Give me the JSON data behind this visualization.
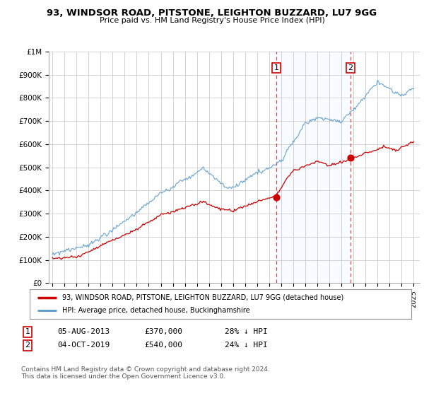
{
  "title": "93, WINDSOR ROAD, PITSTONE, LEIGHTON BUZZARD, LU7 9GG",
  "subtitle": "Price paid vs. HM Land Registry's House Price Index (HPI)",
  "ylabel_ticks": [
    "£0",
    "£100K",
    "£200K",
    "£300K",
    "£400K",
    "£500K",
    "£600K",
    "£700K",
    "£800K",
    "£900K",
    "£1M"
  ],
  "ytick_values": [
    0,
    100000,
    200000,
    300000,
    400000,
    500000,
    600000,
    700000,
    800000,
    900000,
    1000000
  ],
  "ylim": [
    0,
    1000000
  ],
  "xlim_start": 1994.7,
  "xlim_end": 2025.5,
  "house_color": "#cc0000",
  "hpi_color": "#5599cc",
  "transaction1_date": 2013.6,
  "transaction1_price": 370000,
  "transaction1_label": "1",
  "transaction2_date": 2019.75,
  "transaction2_price": 540000,
  "transaction2_label": "2",
  "vline_color": "#cc0000",
  "legend_house": "93, WINDSOR ROAD, PITSTONE, LEIGHTON BUZZARD, LU7 9GG (detached house)",
  "legend_hpi": "HPI: Average price, detached house, Buckinghamshire",
  "table_row1": [
    "1",
    "05-AUG-2013",
    "£370,000",
    "28% ↓ HPI"
  ],
  "table_row2": [
    "2",
    "04-OCT-2019",
    "£540,000",
    "24% ↓ HPI"
  ],
  "footnote": "Contains HM Land Registry data © Crown copyright and database right 2024.\nThis data is licensed under the Open Government Licence v3.0.",
  "background_color": "#ffffff",
  "plot_bg_color": "#ffffff",
  "grid_color": "#cccccc",
  "span_color": "#ddeeff"
}
